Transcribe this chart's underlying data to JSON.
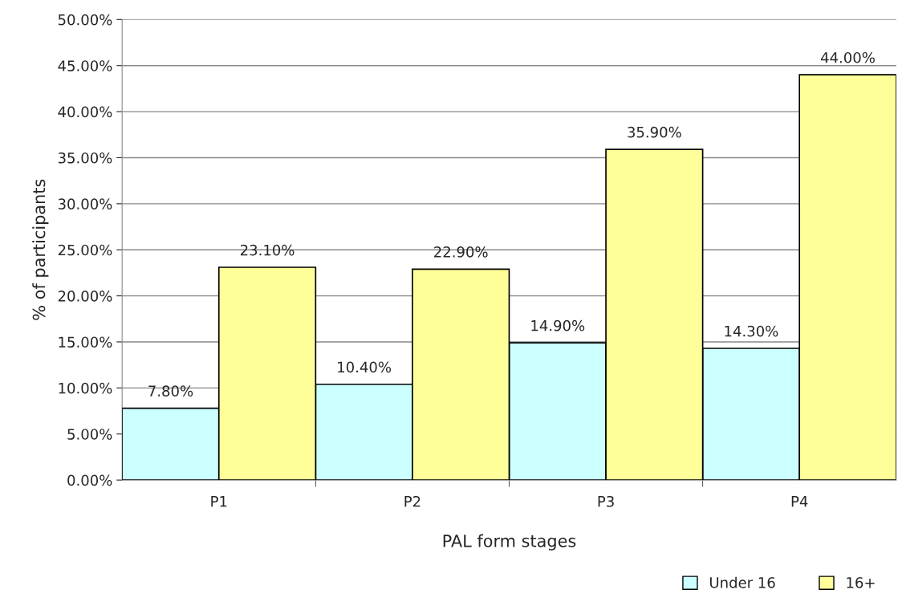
{
  "chart_data": {
    "type": "bar",
    "xlabel": "PAL form stages",
    "ylabel": "% of participants",
    "categories": [
      "P1",
      "P2",
      "P3",
      "P4"
    ],
    "series": [
      {
        "name": "Under 16",
        "color": "#ccffff",
        "values": [
          7.8,
          10.4,
          14.9,
          14.3
        ],
        "value_labels": [
          "7.80%",
          "10.40%",
          "14.90%",
          "14.30%"
        ]
      },
      {
        "name": "16+",
        "color": "#ffff99",
        "values": [
          23.1,
          22.9,
          35.9,
          44.0
        ],
        "value_labels": [
          "23.10%",
          "22.90%",
          "35.90%",
          "44.00%"
        ]
      }
    ],
    "ylim": [
      0,
      50
    ],
    "yticks": [
      {
        "value": 0,
        "label": "0.00%"
      },
      {
        "value": 5,
        "label": "5.00%"
      },
      {
        "value": 10,
        "label": "10.00%"
      },
      {
        "value": 15,
        "label": "15.00%"
      },
      {
        "value": 20,
        "label": "20.00%"
      },
      {
        "value": 25,
        "label": "25.00%"
      },
      {
        "value": 30,
        "label": "30.00%"
      },
      {
        "value": 35,
        "label": "35.00%"
      },
      {
        "value": 40,
        "label": "40.00%"
      },
      {
        "value": 45,
        "label": "45.00%"
      },
      {
        "value": 50,
        "label": "50.00%"
      }
    ],
    "grid": "y",
    "legend": "bottom right"
  }
}
